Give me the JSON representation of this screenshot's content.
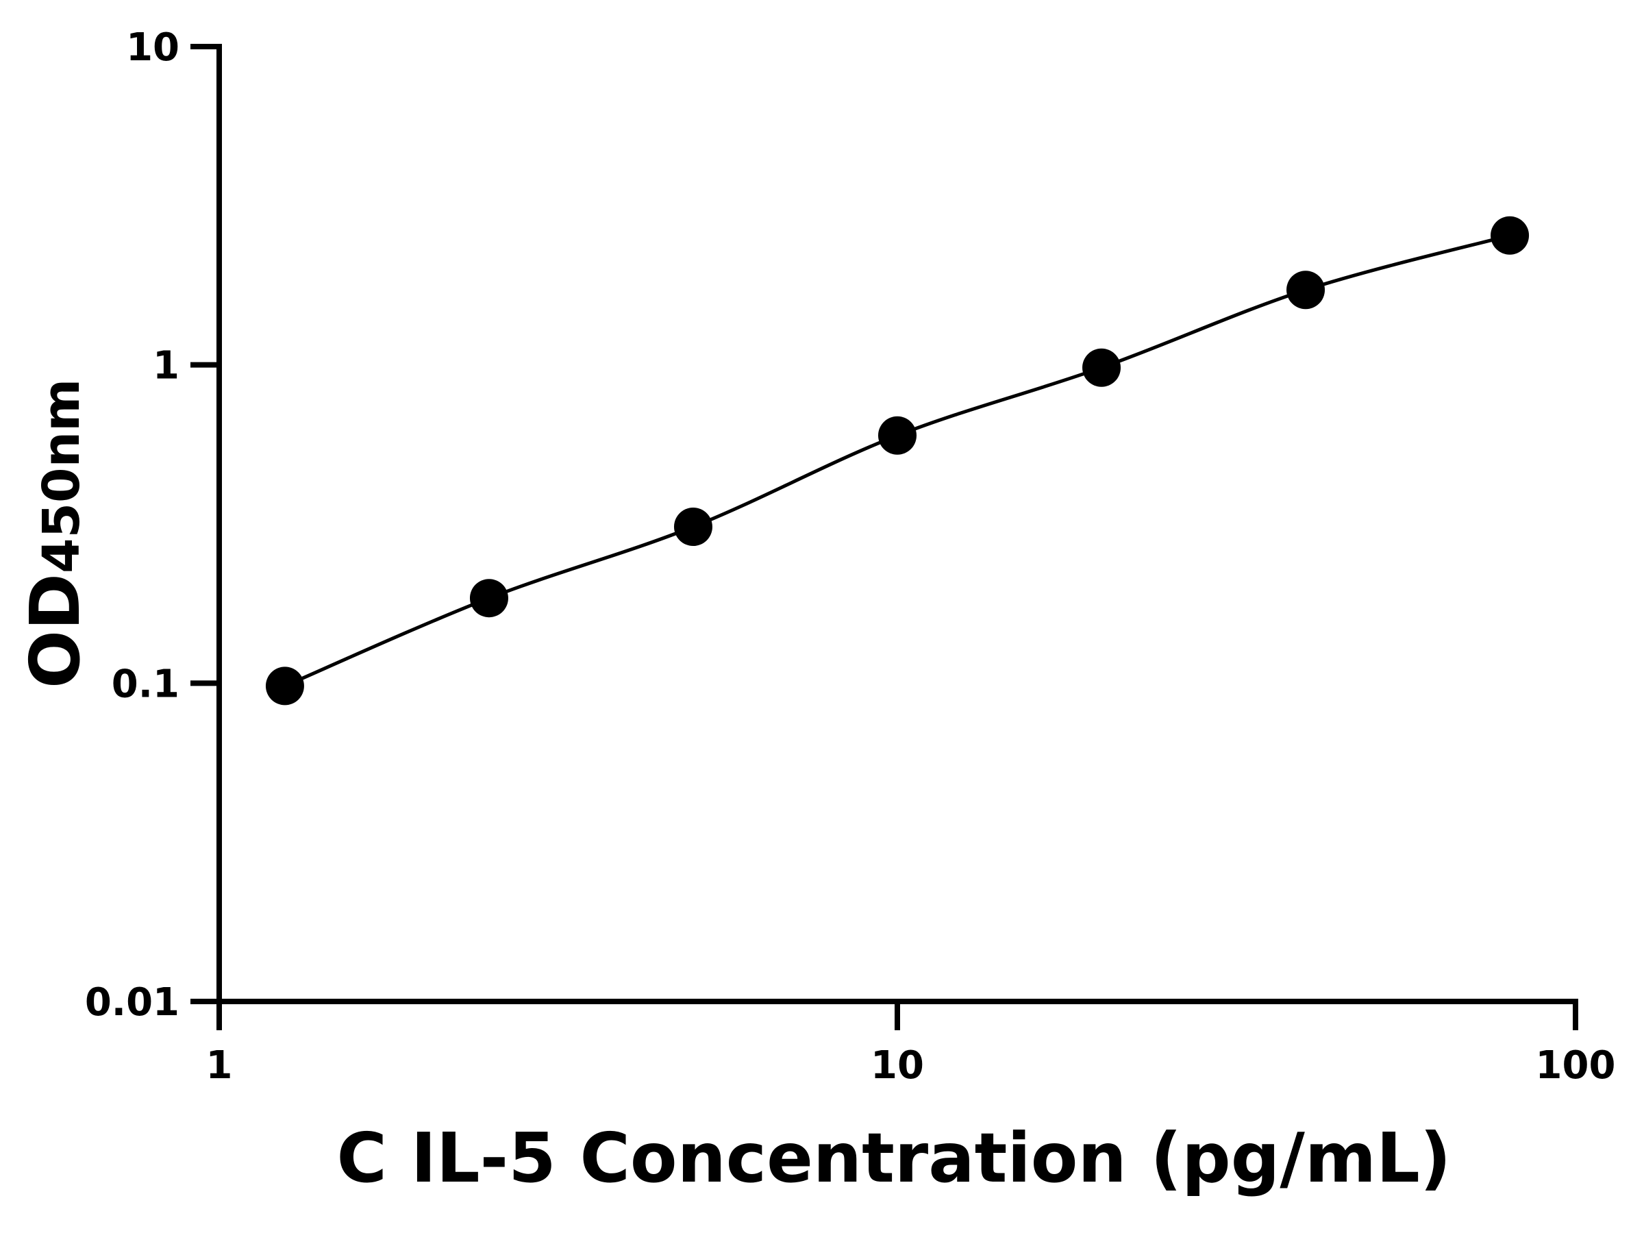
{
  "chart_data": {
    "type": "scatter",
    "title": "",
    "xlabel": "C IL-5 Concentration (pg/mL)",
    "ylabel": "OD",
    "ylabel_subscript": "450nm",
    "x_scale": "log",
    "y_scale": "log",
    "xlim": [
      1,
      100
    ],
    "ylim": [
      0.01,
      10
    ],
    "x_ticks": [
      "1",
      "10",
      "100"
    ],
    "y_ticks": [
      "0.01",
      "0.1",
      "1",
      "10"
    ],
    "grid": false,
    "series": [
      {
        "x": [
          1.25,
          2.5,
          5,
          10,
          20,
          40,
          80
        ],
        "y": [
          0.098,
          0.185,
          0.31,
          0.6,
          0.98,
          1.72,
          2.55
        ]
      }
    ],
    "color": "#000000"
  }
}
